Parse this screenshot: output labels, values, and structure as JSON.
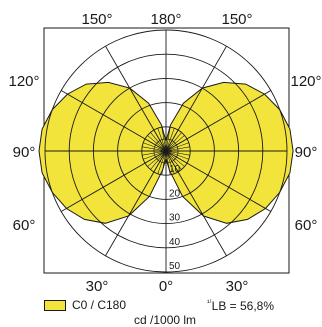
{
  "chart_data": {
    "type": "polar",
    "subtype": "luminous-intensity-distribution",
    "unit_label": "cd /1000 lm",
    "radial_ticks": [
      10,
      20,
      30,
      40,
      50
    ],
    "radial_max": 50,
    "angle_labels": [
      {
        "text": "150°",
        "angle": 150
      },
      {
        "text": "180°",
        "angle": 180
      },
      {
        "text": "150°",
        "angle": -150
      },
      {
        "text": "120°",
        "angle": 120
      },
      {
        "text": "120°",
        "angle": -120
      },
      {
        "text": "90°",
        "angle": 90
      },
      {
        "text": "90°",
        "angle": -90
      },
      {
        "text": "60°",
        "angle": 60
      },
      {
        "text": "60°",
        "angle": -60
      },
      {
        "text": "30°",
        "angle": 30
      },
      {
        "text": "0°",
        "angle": 0
      },
      {
        "text": "30°",
        "angle": -30
      }
    ],
    "series": [
      {
        "name": "C0 / C180",
        "color": "#f2e43b",
        "angles": [
          0,
          10,
          20,
          30,
          40,
          50,
          60,
          70,
          80,
          90,
          100,
          110,
          120,
          130,
          140,
          150,
          160,
          170,
          180
        ],
        "values": [
          3,
          8,
          20,
          31,
          39,
          44,
          47.5,
          50,
          52,
          52.5,
          52,
          50,
          47,
          43,
          37,
          30,
          21,
          11,
          4
        ]
      }
    ],
    "grid": true
  },
  "legend": {
    "label": "C0 / C180",
    "lb_prefix": "¹⁾",
    "lb_text": "LB = 56,8%"
  },
  "colors": {
    "fill": "#f2e43b",
    "line": "#1a1a1a"
  }
}
